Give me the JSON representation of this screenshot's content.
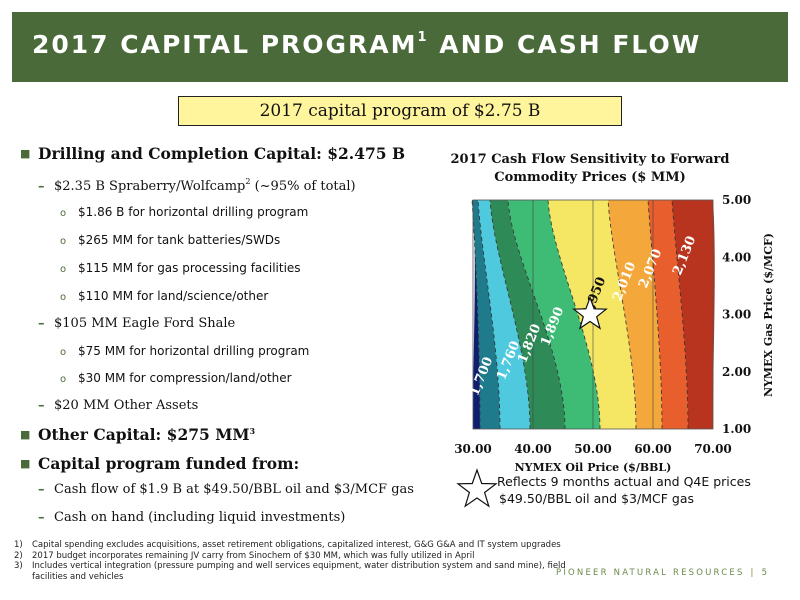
{
  "header": {
    "title": "2017 CAPITAL PROGRAM",
    "title_sup": "1",
    "title_rest": " AND CASH FLOW"
  },
  "summary_box": "2017 capital program of $2.75 B",
  "bullets": {
    "b1": "Drilling and Completion Capital: $2.475 B",
    "b1_1": "$2.35 B Spraberry/Wolfcamp",
    "b1_1_sup": "2",
    "b1_1_tail": " (~95% of total)",
    "b1_1_a": "$1.86 B for horizontal drilling program",
    "b1_1_b": "$265 MM for tank batteries/SWDs",
    "b1_1_c": "$115 MM for gas processing facilities",
    "b1_1_d": "$110 MM for land/science/other",
    "b1_2": "$105 MM Eagle Ford Shale",
    "b1_2_a": "$75 MM for horizontal drilling program",
    "b1_2_b": "$30 MM for compression/land/other",
    "b1_3": "$20 MM Other Assets",
    "b2": "Other Capital: $275 MM",
    "b2_sup": "3",
    "b3": "Capital program funded from:",
    "b3_1": "Cash flow of $1.9 B at $49.50/BBL oil and $3/MCF gas",
    "b3_2": "Cash on hand (including liquid investments)"
  },
  "chart_data": {
    "type": "heatmap",
    "title": "2017 Cash Flow Sensitivity to Forward Commodity Prices ($ MM)",
    "xlabel": "NYMEX Oil Price ($/BBL)",
    "ylabel": "NYMEX Gas Price ($/MCF)",
    "xlim": [
      30,
      70
    ],
    "ylim": [
      1,
      5
    ],
    "x_ticks": [
      "30.00",
      "40.00",
      "50.00",
      "60.00",
      "70.00"
    ],
    "y_ticks": [
      "1.00",
      "2.00",
      "3.00",
      "4.00",
      "5.00"
    ],
    "contour_labels": [
      "1,700",
      "1,760",
      "1,820",
      "1,890",
      "1,950",
      "2,010",
      "2,070",
      "2,130"
    ],
    "bands": [
      {
        "label": "1,700",
        "color": "#0d1f6e"
      },
      {
        "label": "1,760",
        "color": "#1f7a8c"
      },
      {
        "label": "1,820",
        "color": "#4ec9dd"
      },
      {
        "label": "1,890",
        "color": "#2e8b57"
      },
      {
        "label": "1,950",
        "color": "#3ebb74"
      },
      {
        "label": "2,010",
        "color": "#f5e663"
      },
      {
        "label": "2,070",
        "color": "#f4a73a"
      },
      {
        "label": "2,130",
        "color": "#e85e2c"
      },
      {
        "label": ">2,130",
        "color": "#b8341f"
      }
    ],
    "marker": {
      "x": 49.5,
      "y": 3.0,
      "shape": "star"
    },
    "marker_note": [
      "Reflects 9 months actual and Q4E prices",
      "$49.50/BBL oil and $3/MCF gas"
    ]
  },
  "footnotes": [
    {
      "n": "1)",
      "text": "Capital spending excludes acquisitions, asset retirement obligations, capitalized interest, G&G G&A and IT system upgrades"
    },
    {
      "n": "2)",
      "text": "2017 budget incorporates remaining JV carry from Sinochem of $30 MM, which was fully utilized in April"
    },
    {
      "n": "3)",
      "text": "Includes vertical integration (pressure pumping and well services equipment, water distribution system and sand mine), field facilities and vehicles"
    }
  ],
  "brand": {
    "name": "PIONEER NATURAL RESOURCES",
    "sep": "|",
    "page": "5"
  }
}
